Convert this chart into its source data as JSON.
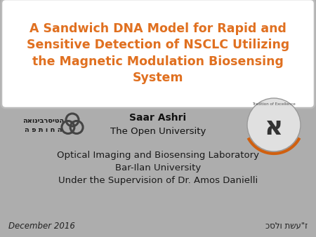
{
  "bg_color": "#adadad",
  "title_box_color": "#ffffff",
  "title_text": "A Sandwich DNA Model for Rapid and\nSensitive Detection of NSCLC Utilizing\nthe Magnetic Modulation Biosensing\nSystem",
  "title_color": "#e07020",
  "title_fontsize": 12.5,
  "author_name": "Saar Ashri",
  "author_fontsize": 10,
  "affiliation": "The Open University",
  "affiliation_fontsize": 9.5,
  "body_lines": [
    "Optical Imaging and Biosensing Laboratory",
    "Bar-Ilan University",
    "Under the Supervision of Dr. Amos Danielli"
  ],
  "body_fontsize": 9.5,
  "body_color": "#1a1a1a",
  "footer_left": "December 2016",
  "footer_right": "כסלו תשע\"ז",
  "footer_fontsize": 8.5,
  "footer_color": "#222222",
  "hebrew_logo_text": "האוניברסיטה\nה פ ת ו ח ה",
  "badge_letter": "א",
  "badge_arc_color": "#d06010",
  "badge_text": "Tradition of Excellence"
}
